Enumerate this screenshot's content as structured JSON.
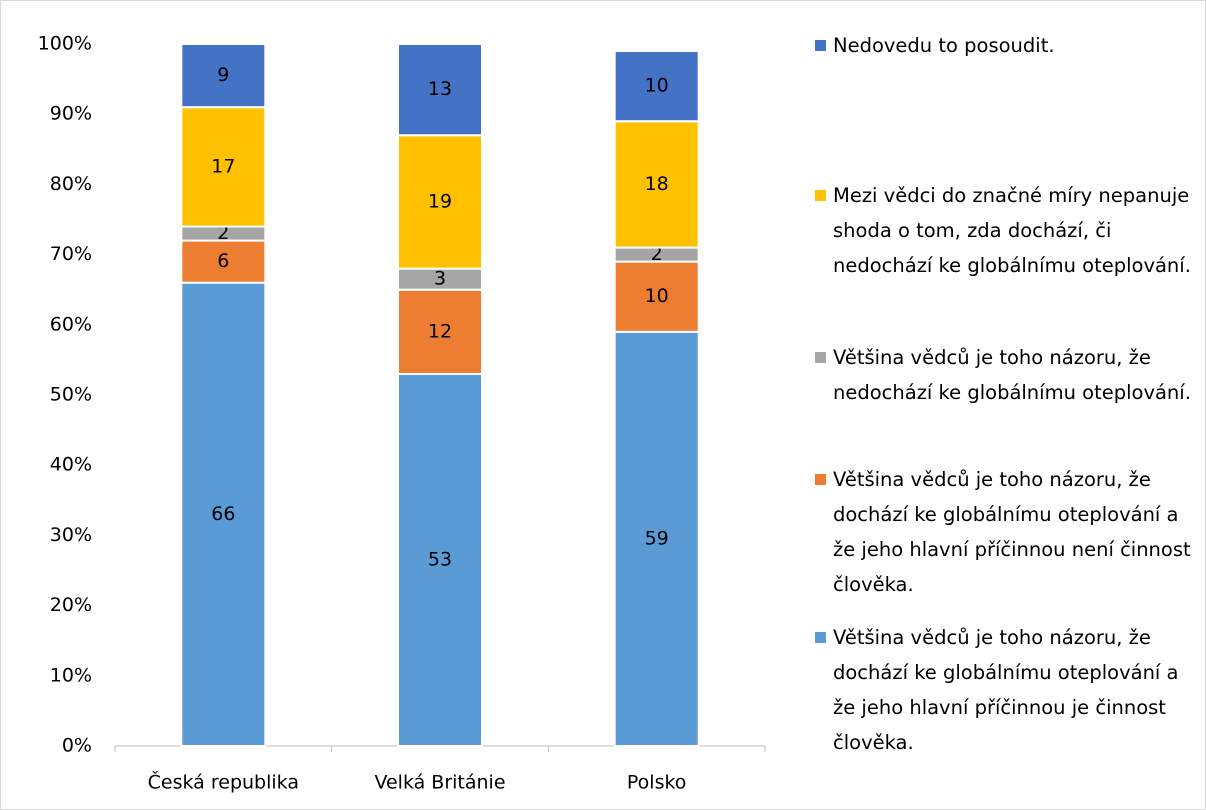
{
  "chart_data": {
    "type": "stacked_bar",
    "categories": [
      "Česká republika",
      "Velká Británie",
      "Polsko"
    ],
    "series": [
      {
        "name": "Většina vědců je toho názoru, že dochází ke globálnímu oteplování a že jeho hlavní příčinnou je činnost člověka.",
        "color": "#5b9bd5",
        "label_color": "#ffffff",
        "values": [
          66,
          53,
          59
        ]
      },
      {
        "name": "Většina vědců je toho názoru, že dochází ke globálnímu oteplování a že jeho hlavní příčinnou není činnost člověka.",
        "color": "#ed7d31",
        "label_color": "#ffffff",
        "values": [
          6,
          12,
          10
        ]
      },
      {
        "name": "Většina vědců je toho názoru, že nedochází ke globálnímu oteplování.",
        "color": "#a5a5a5",
        "label_color": "#000000",
        "values": [
          2,
          3,
          2
        ]
      },
      {
        "name": "Mezi vědci do značné míry nepanuje shoda o tom, zda dochází, či nedochází ke globálnímu oteplování.",
        "color": "#ffc000",
        "label_color": "#000000",
        "values": [
          17,
          19,
          18
        ]
      },
      {
        "name": "Nedovedu to posoudit.",
        "color": "#4472c4",
        "label_color": "#ffffff",
        "values": [
          9,
          13,
          10
        ]
      }
    ],
    "ylim": [
      0,
      100
    ],
    "yticks": [
      {
        "value": 0,
        "label": "0%"
      },
      {
        "value": 10,
        "label": "10%"
      },
      {
        "value": 20,
        "label": "20%"
      },
      {
        "value": 30,
        "label": "30%"
      },
      {
        "value": 40,
        "label": "40%"
      },
      {
        "value": 50,
        "label": "50%"
      },
      {
        "value": 60,
        "label": "60%"
      },
      {
        "value": 70,
        "label": "70%"
      },
      {
        "value": 80,
        "label": "80%"
      },
      {
        "value": 90,
        "label": "90%"
      },
      {
        "value": 100,
        "label": "100%"
      }
    ],
    "legend": "right"
  }
}
